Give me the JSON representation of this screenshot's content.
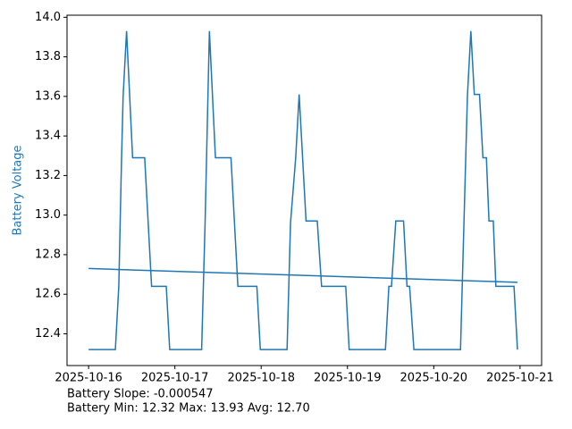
{
  "chart_data": {
    "type": "line",
    "ylabel": "Battery Voltage",
    "ylabel_color": "#1f77b4",
    "annotations": [
      "Battery Slope: -0.000547",
      "Battery Min: 12.32 Max: 13.93 Avg: 12.70"
    ],
    "xlim": [
      -0.25,
      5.25
    ],
    "xticks": [
      {
        "value": 0,
        "label": "2025-10-16"
      },
      {
        "value": 1,
        "label": "2025-10-17"
      },
      {
        "value": 2,
        "label": "2025-10-18"
      },
      {
        "value": 3,
        "label": "2025-10-19"
      },
      {
        "value": 4,
        "label": "2025-10-20"
      },
      {
        "value": 5,
        "label": "2025-10-21"
      }
    ],
    "ylim": [
      12.2395,
      14.0105
    ],
    "yticks": [
      12.4,
      12.6,
      12.8,
      {
        "value": 13,
        "label": "13.0"
      },
      13.2,
      13.4,
      13.6,
      13.8,
      {
        "value": 14,
        "label": "14.0"
      }
    ],
    "series": [
      {
        "color": "#1f77b4",
        "x": [
          0,
          0.31,
          0.35,
          0.38,
          0.4,
          0.44,
          0.51,
          0.65,
          0.73,
          0.9,
          0.94,
          1.31,
          1.35,
          1.4,
          1.47,
          1.65,
          1.73,
          1.95,
          1.99,
          2.3,
          2.34,
          2.4,
          2.44,
          2.52,
          2.65,
          2.7,
          2.98,
          3.02,
          3.44,
          3.48,
          3.51,
          3.56,
          3.65,
          3.69,
          3.72,
          3.77,
          4.31,
          4.39,
          4.43,
          4.47,
          4.53,
          4.57,
          4.61,
          4.64,
          4.69,
          4.72,
          4.93,
          4.97
        ],
        "values": [
          12.32,
          12.32,
          12.64,
          13.25,
          13.6,
          13.93,
          13.29,
          13.29,
          12.64,
          12.64,
          12.32,
          12.32,
          12.96,
          13.93,
          13.29,
          13.29,
          12.64,
          12.64,
          12.32,
          12.32,
          12.96,
          13.29,
          13.61,
          12.97,
          12.97,
          12.64,
          12.64,
          12.32,
          12.32,
          12.64,
          12.64,
          12.97,
          12.97,
          12.64,
          12.64,
          12.32,
          12.32,
          13.6,
          13.93,
          13.61,
          13.61,
          13.29,
          13.29,
          12.97,
          12.97,
          12.64,
          12.64,
          12.32
        ]
      },
      {
        "color": "#1f77b4",
        "x": [
          0,
          4.97
        ],
        "values": [
          12.73,
          12.66
        ]
      }
    ]
  }
}
